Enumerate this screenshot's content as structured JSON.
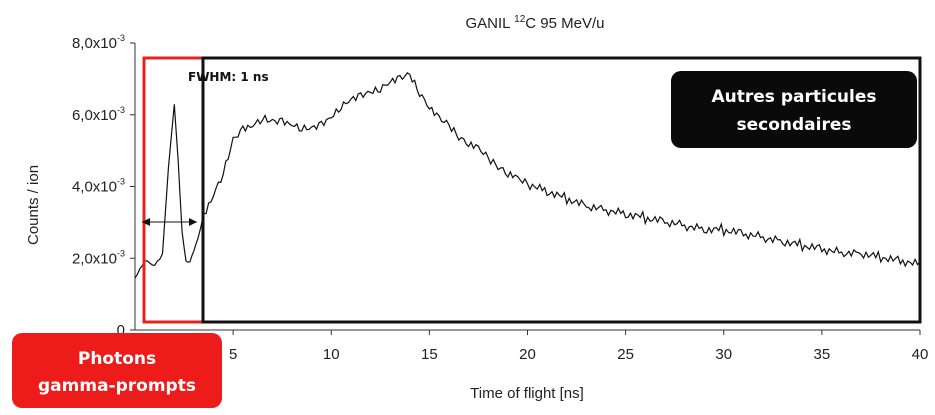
{
  "chart_data": {
    "type": "line",
    "title_main": "GANIL ",
    "title_sup": "12",
    "title_rest": "C 95 MeV/u",
    "xlabel": "Time of flight [ns]",
    "ylabel": "Counts / ion",
    "xlim": [
      0,
      40
    ],
    "ylim": [
      0,
      0.008
    ],
    "x_ticks": [
      5,
      10,
      15,
      20,
      25,
      30,
      35,
      40
    ],
    "y_ticks": [
      {
        "value": 0,
        "mantissa": "0",
        "exp": ""
      },
      {
        "value": 0.002,
        "mantissa": "2,0x10",
        "exp": "-3"
      },
      {
        "value": 0.004,
        "mantissa": "4,0x10",
        "exp": "-3"
      },
      {
        "value": 0.006,
        "mantissa": "6,0x10",
        "exp": "-3"
      },
      {
        "value": 0.008,
        "mantissa": "8,0x10",
        "exp": "-3"
      }
    ],
    "grid": false,
    "annotations": {
      "fwhm": "FWHM: 1 ns",
      "secondary_label_line1": "Autres particules",
      "secondary_label_line2": "secondaires",
      "gamma_label_line1": "Photons",
      "gamma_label_line2": "gamma-prompts"
    },
    "regions": {
      "gamma_x_range": [
        0.5,
        3.0
      ],
      "secondary_x_range": [
        3.1,
        40
      ]
    },
    "series": [
      {
        "x": [
          0,
          0.5,
          1.0,
          1.4,
          1.7,
          2.0,
          2.2,
          2.4,
          2.6,
          2.8,
          3.0,
          3.2,
          3.5,
          4,
          4.5,
          5,
          5.5,
          6,
          6.5,
          7,
          7.5,
          8,
          8.5,
          9,
          9.5,
          10,
          10.5,
          11,
          11.5,
          12,
          12.5,
          13,
          13.5,
          14,
          14.5,
          15,
          15.5,
          16,
          16.5,
          17,
          17.5,
          18,
          18.5,
          19,
          19.5,
          20,
          21,
          22,
          23,
          24,
          25,
          26,
          27,
          28,
          29,
          30,
          31,
          32,
          33,
          34,
          35,
          36,
          37,
          38,
          39,
          40
        ],
        "y": [
          0.00145,
          0.00195,
          0.0018,
          0.0021,
          0.0045,
          0.0063,
          0.0047,
          0.0027,
          0.0019,
          0.0019,
          0.0022,
          0.0025,
          0.0031,
          0.0037,
          0.0043,
          0.0052,
          0.0055,
          0.0056,
          0.0058,
          0.0057,
          0.0057,
          0.0056,
          0.0055,
          0.0055,
          0.0056,
          0.0058,
          0.0061,
          0.0063,
          0.0064,
          0.0065,
          0.0066,
          0.0068,
          0.0069,
          0.007,
          0.0065,
          0.0061,
          0.0058,
          0.0056,
          0.0053,
          0.0051,
          0.005,
          0.0047,
          0.0045,
          0.0043,
          0.0042,
          0.004,
          0.0038,
          0.0036,
          0.0034,
          0.0033,
          0.0032,
          0.0031,
          0.003,
          0.0029,
          0.0028,
          0.0028,
          0.0027,
          0.0026,
          0.0025,
          0.0024,
          0.0023,
          0.0022,
          0.0022,
          0.0021,
          0.002,
          0.0019
        ]
      }
    ]
  }
}
